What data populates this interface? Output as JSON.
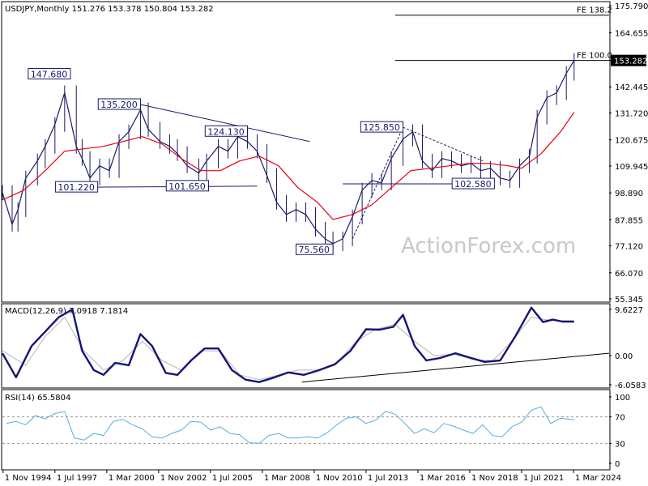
{
  "watermark": "ActionForex.com",
  "chart_data": {
    "type": "line",
    "main": {
      "header": "USDJPY,Monthly  151.276 153.378 150.804 153.282",
      "symbol": "USDJPY,Monthly",
      "ohlc": {
        "open": 151.276,
        "high": 153.378,
        "low": 150.804,
        "close": 153.282
      },
      "y_ticks": [
        175.79,
        164.655,
        153.282,
        142.445,
        131.72,
        120.675,
        109.945,
        98.89,
        87.855,
        77.12,
        66.07,
        55.345
      ],
      "ylim": [
        55.345,
        175.79
      ],
      "current_price_label": "153.282",
      "fib_lines": [
        {
          "label": "FE 138.2",
          "value": 171.9
        },
        {
          "label": "FE 100.0",
          "value": 153.282
        }
      ],
      "annotations": [
        {
          "label": "147.680",
          "x": 1998.3,
          "y": 147.68
        },
        {
          "label": "135.200",
          "x": 2001.9,
          "y": 135.2
        },
        {
          "label": "124.130",
          "x": 2007.4,
          "y": 124.13
        },
        {
          "label": "125.850",
          "x": 2015.4,
          "y": 125.85
        },
        {
          "label": "101.220",
          "x": 1999.7,
          "y": 101.22
        },
        {
          "label": "101.650",
          "x": 2005.4,
          "y": 101.65
        },
        {
          "label": "75.560",
          "x": 2011.8,
          "y": 75.56
        },
        {
          "label": "102.580",
          "x": 2020.1,
          "y": 102.58
        }
      ],
      "series": [
        {
          "name": "Price",
          "x": [
            1994.8,
            1995.3,
            1995.6,
            1996.0,
            1996.6,
            1997.0,
            1997.5,
            1998.0,
            1998.6,
            1998.9,
            1999.3,
            1999.8,
            2000.3,
            2000.8,
            2001.3,
            2001.9,
            2002.3,
            2002.9,
            2003.4,
            2003.8,
            2004.3,
            2004.9,
            2005.3,
            2005.9,
            2006.4,
            2006.9,
            2007.4,
            2007.9,
            2008.4,
            2008.9,
            2009.4,
            2009.9,
            2010.4,
            2010.9,
            2011.4,
            2011.8,
            2012.3,
            2012.8,
            2013.3,
            2013.8,
            2014.3,
            2014.8,
            2015.4,
            2015.9,
            2016.4,
            2016.9,
            2017.4,
            2017.9,
            2018.4,
            2018.9,
            2019.4,
            2019.9,
            2020.4,
            2020.9,
            2021.4,
            2021.9,
            2022.3,
            2022.8,
            2023.3,
            2023.8,
            2024.2
          ],
          "values": [
            99,
            86,
            92,
            105,
            112,
            118,
            127,
            140,
            118,
            113,
            105,
            110,
            108,
            120,
            124,
            133,
            125,
            120,
            118,
            115,
            110,
            107,
            112,
            118,
            116,
            122,
            120,
            116,
            106,
            95,
            90,
            92,
            90,
            84,
            80,
            78,
            80,
            89,
            100,
            104,
            103,
            113,
            121,
            124,
            112,
            108,
            113,
            112,
            110,
            111,
            108,
            109,
            105,
            104,
            110,
            114,
            130,
            138,
            140,
            148,
            153.3
          ]
        },
        {
          "name": "Moving Average",
          "x": [
            1994.8,
            1995.9,
            1997.0,
            1998.0,
            1999.0,
            2000.0,
            2001.0,
            2002.0,
            2003.0,
            2004.0,
            2005.0,
            2006.0,
            2007.0,
            2008.0,
            2009.0,
            2010.0,
            2011.0,
            2011.8,
            2012.8,
            2013.8,
            2014.8,
            2015.8,
            2016.8,
            2017.8,
            2018.8,
            2019.8,
            2020.8,
            2021.5,
            2022.5,
            2023.5,
            2024.2
          ],
          "values": [
            96,
            100,
            108,
            116,
            117,
            118,
            120,
            122,
            119,
            113,
            108,
            108,
            112,
            114,
            110,
            101,
            95,
            88,
            90,
            94,
            101,
            108,
            109,
            110,
            111,
            111,
            110,
            109,
            115,
            124,
            132
          ]
        }
      ],
      "trendlines": [
        {
          "x": [
            2001.9,
            2010.6
          ],
          "y": [
            135.2,
            120.0
          ]
        },
        {
          "x": [
            1999.3,
            2007.9
          ],
          "y": [
            101.22,
            101.65
          ]
        },
        {
          "x": [
            2012.8,
            2015.4
          ],
          "y": [
            80.0,
            125.85
          ],
          "dashed": true
        },
        {
          "x": [
            2015.4,
            2019.5
          ],
          "y": [
            125.85,
            112.0
          ],
          "dashed": true
        },
        {
          "x": [
            2012.3,
            2020.1
          ],
          "y": [
            102.58,
            102.58
          ]
        }
      ]
    },
    "macd": {
      "header": "MACD(12,26,9) 7.0918 7.1814",
      "y_ticks": [
        "9.6227",
        "0.00",
        "-6.0583"
      ],
      "ylim": [
        -6.0583,
        9.6227
      ],
      "series": [
        {
          "name": "MACD",
          "x": [
            1994.8,
            1995.5,
            1996.3,
            1997.0,
            1997.7,
            1998.4,
            1998.9,
            1999.5,
            2000.0,
            2000.6,
            2001.3,
            2001.9,
            2002.5,
            2003.2,
            2003.8,
            2004.5,
            2005.2,
            2005.9,
            2006.6,
            2007.3,
            2008.0,
            2008.8,
            2009.5,
            2010.3,
            2011.1,
            2011.9,
            2012.7,
            2013.5,
            2014.2,
            2014.9,
            2015.4,
            2016.0,
            2016.6,
            2017.3,
            2018.1,
            2018.9,
            2019.6,
            2020.4,
            2021.2,
            2022.0,
            2022.6,
            2023.1,
            2023.6,
            2024.2
          ],
          "values": [
            0.5,
            -4.5,
            2,
            5,
            8,
            9.6,
            1,
            -3,
            -4,
            -1.5,
            -2,
            4.5,
            2,
            -3.6,
            -4,
            -1,
            1.5,
            1.5,
            -3,
            -5,
            -5.5,
            -4.5,
            -3.5,
            -4,
            -3,
            -1.8,
            1,
            5.5,
            5.4,
            6,
            8.5,
            2,
            -1,
            -0.5,
            0.5,
            -0.5,
            -1.3,
            -1,
            4.2,
            10,
            7,
            7.5,
            7.1,
            7.1
          ]
        },
        {
          "name": "Signal",
          "x": [
            1994.8,
            1996.0,
            1997.0,
            1998.0,
            1999.0,
            2000.0,
            2001.0,
            2002.0,
            2003.0,
            2004.0,
            2005.0,
            2006.0,
            2007.0,
            2008.0,
            2009.0,
            2010.0,
            2011.0,
            2012.0,
            2013.0,
            2014.0,
            2015.0,
            2016.0,
            2017.0,
            2018.0,
            2019.0,
            2020.0,
            2021.0,
            2022.0,
            2023.0,
            2024.2
          ],
          "values": [
            1,
            -2,
            4,
            8,
            1,
            -3,
            -1,
            3,
            -1,
            -3,
            1,
            1,
            -4,
            -5,
            -4,
            -3,
            -3,
            -1.5,
            3,
            5.5,
            6.5,
            3,
            0,
            0.3,
            -0.8,
            -1.1,
            3,
            8,
            7.3,
            7.2
          ]
        }
      ],
      "trendline": {
        "x": [
          2010.2,
          2026.0
        ],
        "y": [
          -5.5,
          0.5
        ]
      }
    },
    "rsi": {
      "header": "RSI(14) 65.5804",
      "y_ticks": [
        "100",
        "70",
        "30",
        "0"
      ],
      "levels": [
        70,
        30
      ],
      "ylim": [
        0,
        100
      ],
      "series": [
        {
          "name": "RSI",
          "x": [
            1995.0,
            1995.5,
            1996.0,
            1996.5,
            1997.0,
            1997.5,
            1998.0,
            1998.5,
            1999.0,
            1999.5,
            2000.0,
            2000.5,
            2001.0,
            2001.5,
            2002.0,
            2002.5,
            2003.0,
            2003.5,
            2004.0,
            2004.5,
            2005.0,
            2005.5,
            2006.0,
            2006.5,
            2007.0,
            2007.5,
            2008.0,
            2008.5,
            2009.0,
            2009.5,
            2010.0,
            2010.5,
            2011.0,
            2011.5,
            2012.0,
            2012.5,
            2013.0,
            2013.5,
            2014.0,
            2014.5,
            2015.0,
            2015.5,
            2016.0,
            2016.5,
            2017.0,
            2017.5,
            2018.0,
            2018.5,
            2019.0,
            2019.5,
            2020.0,
            2020.5,
            2021.0,
            2021.5,
            2022.0,
            2022.5,
            2023.0,
            2023.5,
            2024.2
          ],
          "values": [
            60,
            63,
            58,
            72,
            67,
            75,
            78,
            38,
            35,
            45,
            42,
            63,
            66,
            58,
            52,
            40,
            38,
            45,
            50,
            63,
            62,
            50,
            55,
            45,
            43,
            31,
            30,
            42,
            45,
            38,
            38,
            40,
            38,
            46,
            58,
            68,
            70,
            60,
            65,
            78,
            74,
            60,
            45,
            52,
            46,
            60,
            56,
            50,
            45,
            58,
            42,
            40,
            55,
            62,
            80,
            85,
            60,
            68,
            65.6
          ]
        }
      ]
    },
    "x_labels": [
      "1 Nov 1994",
      "1 Jul 1997",
      "1 Mar 2000",
      "1 Nov 2002",
      "1 Jul 2005",
      "1 Mar 2008",
      "1 Nov 2010",
      "1 Jul 2013",
      "1 Mar 2016",
      "1 Nov 2018",
      "1 Jul 2021",
      "1 Mar 2024"
    ],
    "xlim": [
      1994.8,
      2026.0
    ],
    "colors": {
      "price": "#1a1a66",
      "ma": "#e8000e",
      "macd": "#141478",
      "signal": "#b5b5b5",
      "rsi": "#55aee0",
      "label_box_bg": "#ffffff",
      "label_box_border": "#1a1a66",
      "current_box_bg": "#000000",
      "current_box_fg": "#ffffff"
    }
  }
}
